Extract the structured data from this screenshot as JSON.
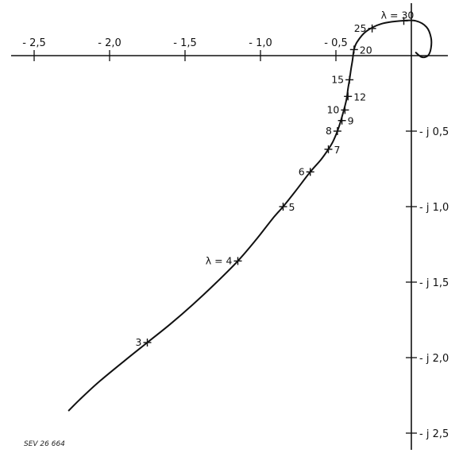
{
  "chart_data": {
    "type": "line",
    "title": "",
    "xlabel": "",
    "ylabel": "",
    "xlim": [
      -2.6,
      0.15
    ],
    "ylim": [
      -2.6,
      0.2
    ],
    "grid": false,
    "x_ticks": [
      {
        "value": -2.5,
        "label": "- 2,5"
      },
      {
        "value": -2.0,
        "label": "- 2,0"
      },
      {
        "value": -1.5,
        "label": "- 1,5"
      },
      {
        "value": -1.0,
        "label": "- 1,0"
      },
      {
        "value": -0.5,
        "label": "- 0,5"
      }
    ],
    "y_ticks": [
      {
        "value": -0.5,
        "label": "- j 0,5"
      },
      {
        "value": -1.0,
        "label": "- j 1,0"
      },
      {
        "value": -1.5,
        "label": "- j 1,5"
      },
      {
        "value": -2.0,
        "label": "- j 2,0"
      },
      {
        "value": -2.5,
        "label": "- j 2,5"
      }
    ],
    "curve": [
      [
        -2.27,
        -2.35
      ],
      [
        -2.2,
        -2.28
      ],
      [
        -2.07,
        -2.16
      ],
      [
        -1.9,
        -2.02
      ],
      [
        -1.75,
        -1.9
      ],
      [
        -1.6,
        -1.78
      ],
      [
        -1.45,
        -1.65
      ],
      [
        -1.3,
        -1.51
      ],
      [
        -1.15,
        -1.36
      ],
      [
        -1.03,
        -1.22
      ],
      [
        -0.92,
        -1.08
      ],
      [
        -0.85,
        -1.0
      ],
      [
        -0.77,
        -0.9
      ],
      [
        -0.67,
        -0.77
      ],
      [
        -0.6,
        -0.69
      ],
      [
        -0.55,
        -0.62
      ],
      [
        -0.52,
        -0.57
      ],
      [
        -0.49,
        -0.5
      ],
      [
        -0.47,
        -0.44
      ],
      [
        -0.45,
        -0.37
      ],
      [
        -0.43,
        -0.29
      ],
      [
        -0.42,
        -0.22
      ],
      [
        -0.41,
        -0.16
      ],
      [
        -0.4,
        -0.09
      ],
      [
        -0.39,
        -0.03
      ],
      [
        -0.38,
        0.04
      ],
      [
        -0.36,
        0.09
      ],
      [
        -0.3,
        0.16
      ],
      [
        -0.2,
        0.21
      ],
      [
        -0.07,
        0.23
      ],
      [
        0.03,
        0.23
      ],
      [
        0.1,
        0.19
      ],
      [
        0.13,
        0.12
      ],
      [
        0.13,
        0.05
      ],
      [
        0.11,
        0.0
      ],
      [
        0.07,
        -0.01
      ],
      [
        0.03,
        0.02
      ]
    ],
    "points": [
      {
        "lambda": "3",
        "label": "3",
        "x": -1.75,
        "y": -1.9,
        "anchor": "left"
      },
      {
        "lambda": "4",
        "label": "λ = 4",
        "x": -1.15,
        "y": -1.36,
        "anchor": "left"
      },
      {
        "lambda": "5",
        "label": "5",
        "x": -0.85,
        "y": -1.0,
        "anchor": "right"
      },
      {
        "lambda": "6",
        "label": "6",
        "x": -0.67,
        "y": -0.77,
        "anchor": "left"
      },
      {
        "lambda": "7",
        "label": "7",
        "x": -0.55,
        "y": -0.62,
        "anchor": "right"
      },
      {
        "lambda": "8",
        "label": "8",
        "x": -0.49,
        "y": -0.5,
        "anchor": "left"
      },
      {
        "lambda": "9",
        "label": "9",
        "x": -0.46,
        "y": -0.43,
        "anchor": "right"
      },
      {
        "lambda": "10",
        "label": "10",
        "x": -0.44,
        "y": -0.36,
        "anchor": "left"
      },
      {
        "lambda": "12",
        "label": "12",
        "x": -0.42,
        "y": -0.27,
        "anchor": "right"
      },
      {
        "lambda": "15",
        "label": "15",
        "x": -0.41,
        "y": -0.16,
        "anchor": "left"
      },
      {
        "lambda": "20",
        "label": "20",
        "x": -0.38,
        "y": 0.04,
        "anchor": "right"
      },
      {
        "lambda": "25",
        "label": "25",
        "x": -0.26,
        "y": 0.18,
        "anchor": "left"
      },
      {
        "lambda": "30",
        "label": "λ = 30",
        "x": -0.05,
        "y": 0.23,
        "anchor": "above"
      }
    ]
  },
  "figure_note": "SEV 26 664"
}
